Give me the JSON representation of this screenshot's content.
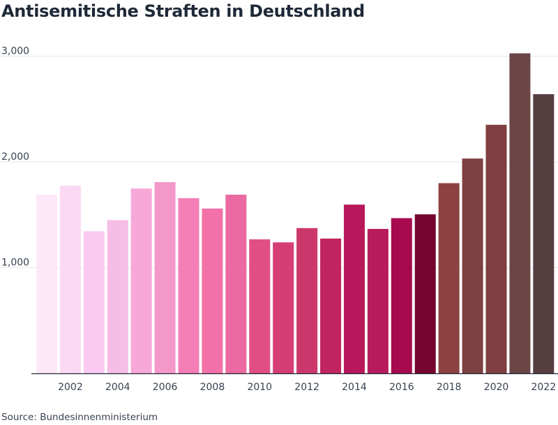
{
  "title": "Antisemitische Straften in Deutschland",
  "source": "Source: Bundesinnenministerium",
  "chart_data": {
    "type": "bar",
    "title": "Antisemitische Straften in Deutschland",
    "xlabel": "",
    "ylabel": "",
    "ylim": [
      0,
      3100
    ],
    "y_ticks": [
      1000,
      2000,
      3000
    ],
    "y_tick_labels": [
      "1,000",
      "2,000",
      "3,000"
    ],
    "x_tick_labels": [
      "2002",
      "2004",
      "2006",
      "2008",
      "2010",
      "2012",
      "2014",
      "2016",
      "2018",
      "2020",
      "2022"
    ],
    "grid": true,
    "categories": [
      "2001",
      "2002",
      "2003",
      "2004",
      "2005",
      "2006",
      "2007",
      "2008",
      "2009",
      "2010",
      "2011",
      "2012",
      "2013",
      "2014",
      "2015",
      "2016",
      "2017",
      "2018",
      "2019",
      "2020",
      "2021",
      "2022"
    ],
    "values": [
      1691,
      1775,
      1344,
      1449,
      1748,
      1809,
      1657,
      1559,
      1690,
      1268,
      1239,
      1374,
      1275,
      1596,
      1366,
      1468,
      1504,
      1799,
      2032,
      2351,
      3027,
      2641
    ],
    "colors": [
      "#fde8f8",
      "#fbd8f3",
      "#f9c9f1",
      "#f6bde6",
      "#f7a8d8",
      "#f498c9",
      "#f57eb6",
      "#f271a8",
      "#eb6aa1",
      "#e14e84",
      "#d63d75",
      "#cc386b",
      "#c0255f",
      "#b9175b",
      "#b81b5c",
      "#a70a4d",
      "#760530",
      "#8b4240",
      "#7d4041",
      "#7f3e3f",
      "#6b4546",
      "#563e40"
    ]
  }
}
